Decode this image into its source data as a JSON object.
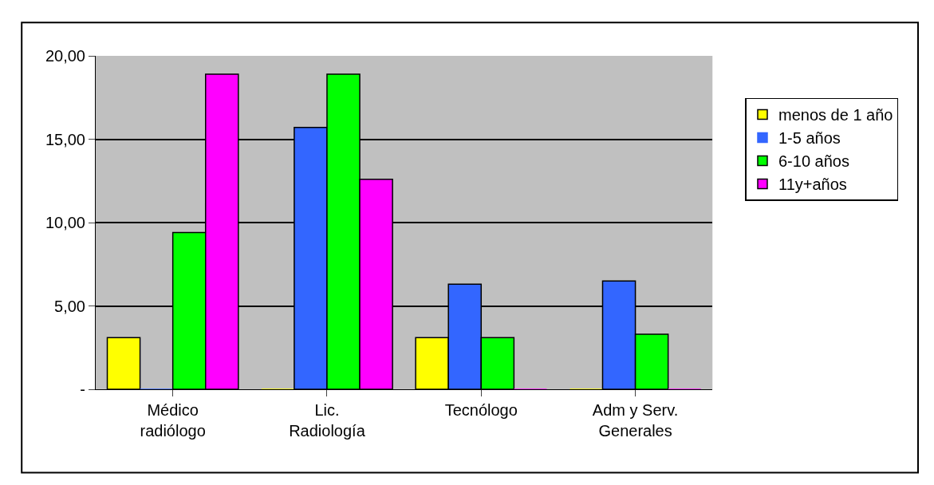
{
  "chart_data": {
    "type": "bar",
    "categories": [
      "Médico\nradiólogo",
      "Lic.\nRadiología",
      "Tecnólogo",
      "Adm y Serv.\nGenerales"
    ],
    "series": [
      {
        "name": "menos de 1 año",
        "color": "#ffff00",
        "values": [
          3.1,
          0,
          3.1,
          0
        ]
      },
      {
        "name": "1-5 años",
        "color": "#3366ff",
        "values": [
          0,
          15.7,
          6.3,
          6.5
        ]
      },
      {
        "name": "6-10 años",
        "color": "#00ff00",
        "values": [
          9.4,
          18.9,
          3.1,
          3.3
        ]
      },
      {
        "name": "11y+años",
        "color": "#ff00ff",
        "values": [
          18.9,
          12.6,
          0,
          0
        ]
      }
    ],
    "ylim": [
      0,
      20
    ],
    "yticks": [
      {
        "value": 0,
        "label": "-"
      },
      {
        "value": 5,
        "label": "5,00"
      },
      {
        "value": 10,
        "label": "10,00"
      },
      {
        "value": 15,
        "label": "15,00"
      },
      {
        "value": 20,
        "label": "20,00"
      }
    ],
    "grid": "y",
    "legend": "right"
  }
}
